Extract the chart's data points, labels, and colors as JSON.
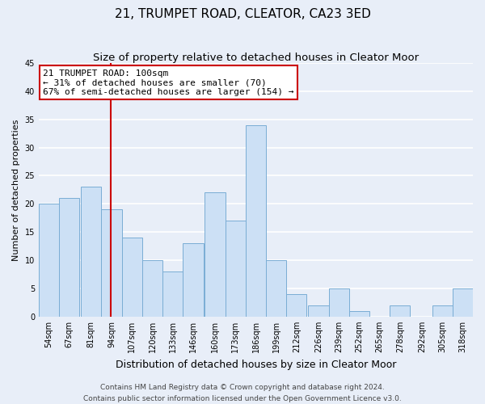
{
  "title": "21, TRUMPET ROAD, CLEATOR, CA23 3ED",
  "subtitle": "Size of property relative to detached houses in Cleator Moor",
  "xlabel": "Distribution of detached houses by size in Cleator Moor",
  "ylabel": "Number of detached properties",
  "bins_left": [
    54,
    67,
    81,
    94,
    107,
    120,
    133,
    146,
    160,
    173,
    186,
    199,
    212,
    226,
    239,
    252,
    265,
    278,
    292,
    305,
    318
  ],
  "bin_width": 13,
  "counts": [
    20,
    21,
    23,
    19,
    14,
    10,
    8,
    13,
    22,
    17,
    34,
    10,
    4,
    2,
    5,
    1,
    0,
    2,
    0,
    2,
    5
  ],
  "bin_labels": [
    "54sqm",
    "67sqm",
    "81sqm",
    "94sqm",
    "107sqm",
    "120sqm",
    "133sqm",
    "146sqm",
    "160sqm",
    "173sqm",
    "186sqm",
    "199sqm",
    "212sqm",
    "226sqm",
    "239sqm",
    "252sqm",
    "265sqm",
    "278sqm",
    "292sqm",
    "305sqm",
    "318sqm"
  ],
  "bar_color": "#cce0f5",
  "bar_edge_color": "#7aadd4",
  "vline_x": 100,
  "vline_color": "#cc0000",
  "annotation_title": "21 TRUMPET ROAD: 100sqm",
  "annotation_line1": "← 31% of detached houses are smaller (70)",
  "annotation_line2": "67% of semi-detached houses are larger (154) →",
  "annotation_box_facecolor": "#ffffff",
  "annotation_box_edgecolor": "#cc0000",
  "ylim": [
    0,
    45
  ],
  "yticks": [
    0,
    5,
    10,
    15,
    20,
    25,
    30,
    35,
    40,
    45
  ],
  "footer1": "Contains HM Land Registry data © Crown copyright and database right 2024.",
  "footer2": "Contains public sector information licensed under the Open Government Licence v3.0.",
  "fig_facecolor": "#e8eef8",
  "plot_facecolor": "#e8eef8",
  "grid_color": "#ffffff",
  "grid_linewidth": 1.2,
  "title_fontsize": 11,
  "subtitle_fontsize": 9.5,
  "xlabel_fontsize": 9,
  "ylabel_fontsize": 8,
  "tick_fontsize": 7,
  "annotation_fontsize": 8,
  "footer_fontsize": 6.5
}
